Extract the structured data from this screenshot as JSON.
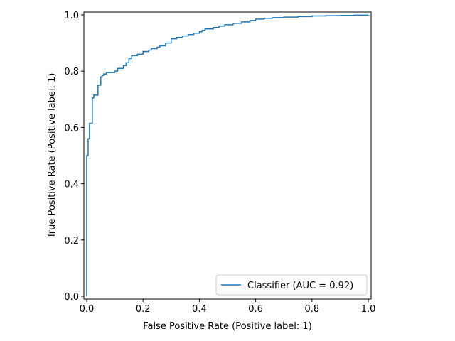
{
  "chart_data": {
    "type": "line",
    "title": "",
    "xlabel": "False Positive Rate (Positive label: 1)",
    "ylabel": "True Positive Rate (Positive label: 1)",
    "xlim": [
      0,
      1
    ],
    "ylim": [
      0,
      1
    ],
    "x_ticks": [
      "0.0",
      "0.2",
      "0.4",
      "0.6",
      "0.8",
      "1.0"
    ],
    "y_ticks": [
      "0.0",
      "0.2",
      "0.4",
      "0.6",
      "0.8",
      "1.0"
    ],
    "grid": false,
    "legend_position": "bottom-right",
    "series": [
      {
        "name": "Classifier (AUC = 0.92)",
        "color": "#1f77b4",
        "drawstyle": "steps-post",
        "x": [
          0.0,
          0.0,
          0.005,
          0.01,
          0.02,
          0.025,
          0.04,
          0.05,
          0.055,
          0.06,
          0.07,
          0.1,
          0.11,
          0.13,
          0.14,
          0.15,
          0.16,
          0.18,
          0.2,
          0.22,
          0.23,
          0.25,
          0.26,
          0.28,
          0.3,
          0.32,
          0.34,
          0.36,
          0.38,
          0.4,
          0.41,
          0.42,
          0.45,
          0.47,
          0.49,
          0.52,
          0.55,
          0.58,
          0.6,
          0.63,
          0.66,
          0.7,
          0.75,
          0.8,
          0.85,
          0.9,
          0.95,
          1.0
        ],
        "y": [
          0.0,
          0.5,
          0.56,
          0.615,
          0.705,
          0.715,
          0.75,
          0.78,
          0.785,
          0.79,
          0.795,
          0.8,
          0.81,
          0.82,
          0.83,
          0.845,
          0.855,
          0.86,
          0.87,
          0.875,
          0.88,
          0.885,
          0.89,
          0.9,
          0.915,
          0.92,
          0.925,
          0.93,
          0.935,
          0.94,
          0.945,
          0.95,
          0.955,
          0.96,
          0.965,
          0.97,
          0.975,
          0.98,
          0.985,
          0.988,
          0.99,
          0.992,
          0.994,
          0.996,
          0.997,
          0.998,
          0.999,
          1.0
        ]
      }
    ]
  }
}
